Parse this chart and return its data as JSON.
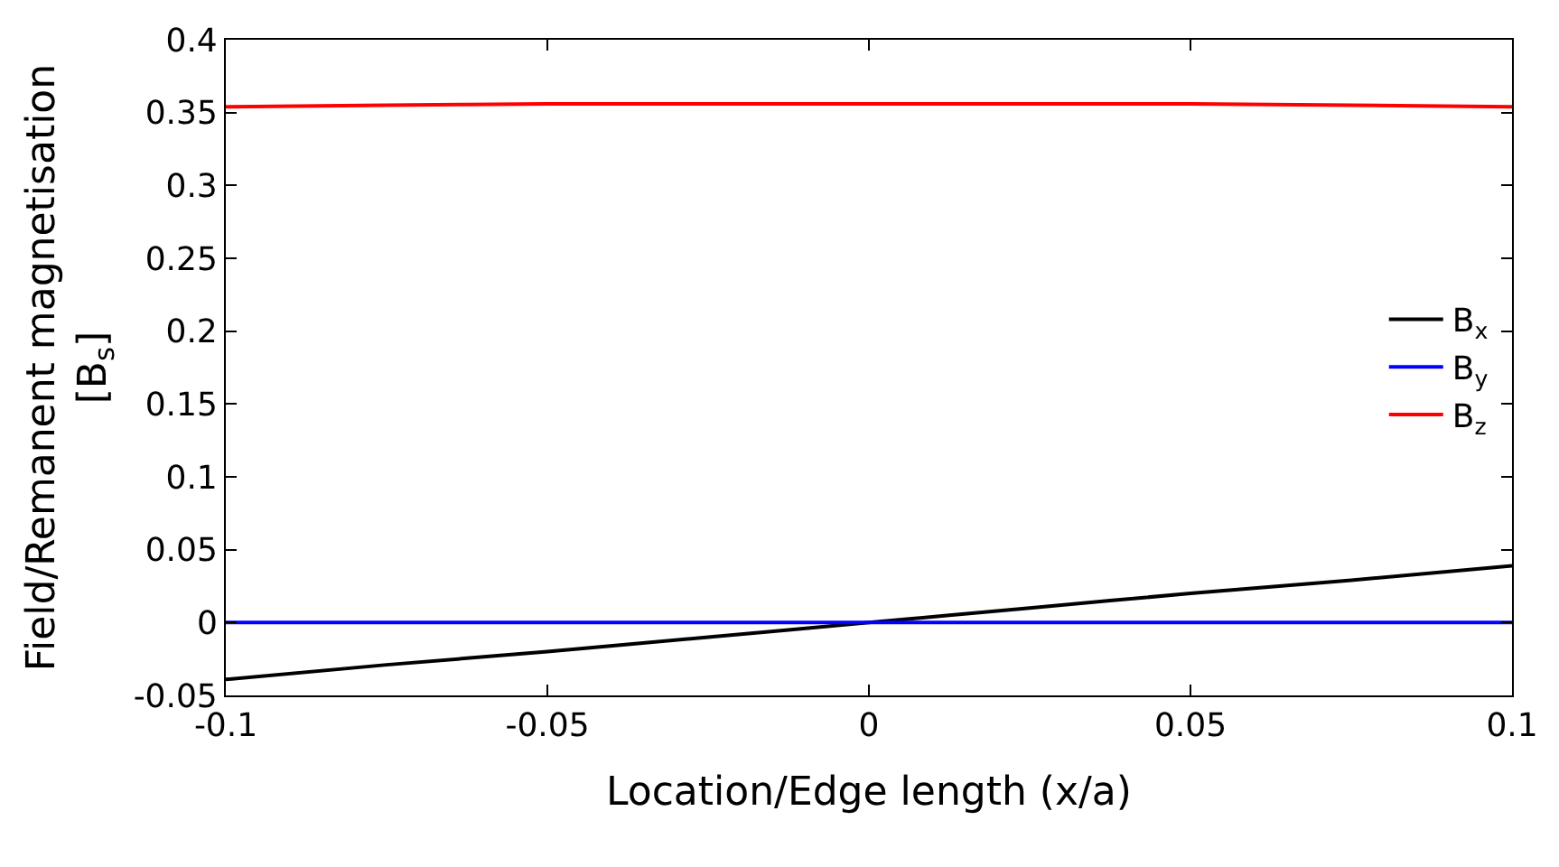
{
  "chart_data": {
    "type": "line",
    "xlabel": "Location/Edge length (x/a)",
    "ylabel": "Field/Remanent magnetisation\n[B$_{s}$]",
    "x": [
      -0.1,
      -0.075,
      -0.05,
      -0.025,
      0,
      0.025,
      0.05,
      0.075,
      0.1
    ],
    "series": [
      {
        "name": "B$_{x}$",
        "color": "#000000",
        "values": [
          -0.039,
          -0.029,
          -0.02,
          -0.01,
          0,
          0.01,
          0.02,
          0.029,
          0.039
        ]
      },
      {
        "name": "B$_{y}$",
        "color": "#0000ff",
        "values": [
          0,
          0,
          0,
          0,
          0,
          0,
          0,
          0,
          0
        ]
      },
      {
        "name": "B$_{z}$",
        "color": "#ff0000",
        "values": [
          0.354,
          0.355,
          0.356,
          0.356,
          0.356,
          0.356,
          0.356,
          0.355,
          0.354
        ]
      }
    ],
    "xlim": [
      -0.1,
      0.1
    ],
    "xticks": [
      -0.1,
      -0.05,
      0,
      0.05,
      0.1
    ],
    "ylim": [
      -0.05,
      0.4
    ],
    "yticks": [
      -0.05,
      0,
      0.05,
      0.1,
      0.15,
      0.2,
      0.25,
      0.3,
      0.35,
      0.4
    ],
    "legend": "right",
    "marker": "none",
    "line_style": "solid"
  }
}
